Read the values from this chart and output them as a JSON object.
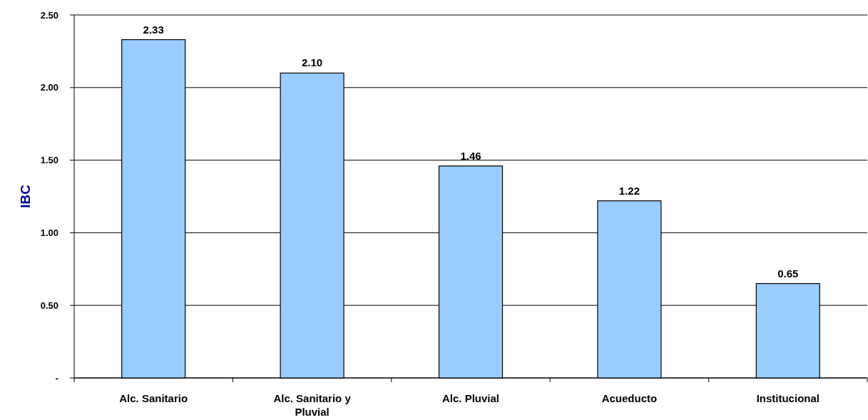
{
  "chart_data": {
    "type": "bar",
    "ylabel": "IBC",
    "categories": [
      "Alc. Sanitario",
      "Alc. Sanitario y Pluvial",
      "Alc. Pluvial",
      "Acueducto",
      "Institucional"
    ],
    "values": [
      2.33,
      2.1,
      1.46,
      1.22,
      0.65
    ],
    "color": "#99ccff",
    "value_labels": [
      "2.33",
      "2.10",
      "1.46",
      "1.22",
      "0.65"
    ],
    "ylim": [
      0,
      2.5
    ],
    "yticks": [
      {
        "value": 0,
        "label": "-"
      },
      {
        "value": 0.5,
        "label": "0.50"
      },
      {
        "value": 1,
        "label": "1.00"
      },
      {
        "value": 1.5,
        "label": "1.50"
      },
      {
        "value": 2,
        "label": "2.00"
      },
      {
        "value": 2.5,
        "label": "2.50"
      }
    ],
    "grid": "y"
  }
}
